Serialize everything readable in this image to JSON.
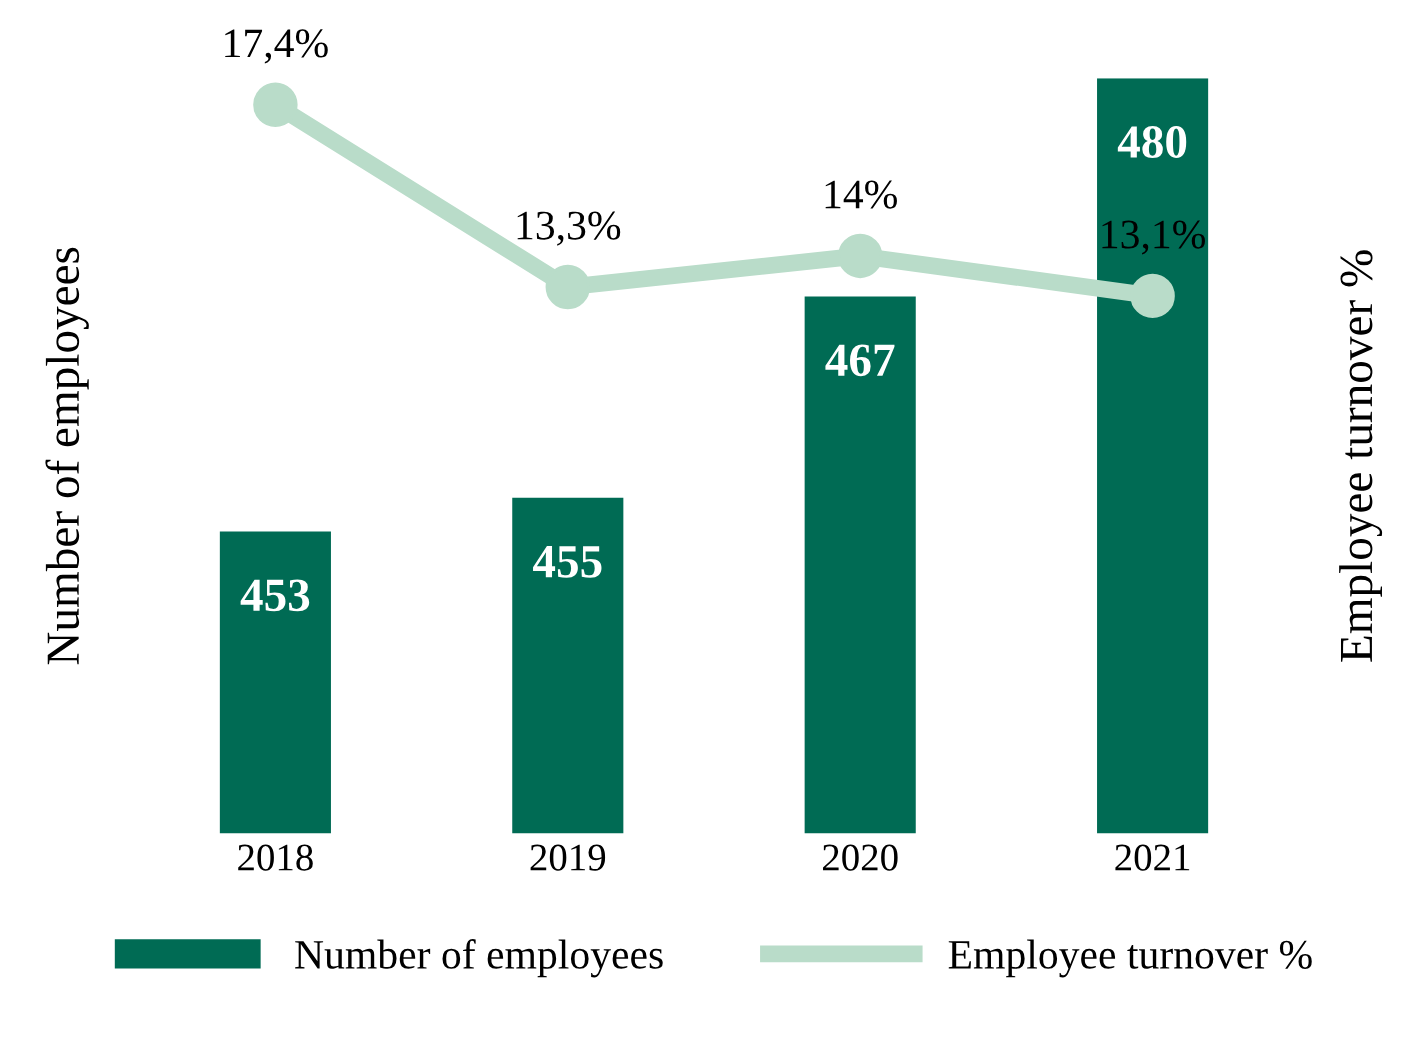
{
  "chart_data": {
    "type": "bar",
    "ylabel": "Number of employees",
    "y2label": "Employee turnover %",
    "categories": [
      "2018",
      "2019",
      "2020",
      "2021"
    ],
    "series": [
      {
        "name": "Number of employees",
        "color": "#006b54",
        "values": [
          453,
          455,
          467,
          480
        ],
        "value_labels": [
          "453",
          "455",
          "467",
          "480"
        ]
      },
      {
        "name": "Employee turnover %",
        "type": "line",
        "axis": "y2",
        "color": "#b9dcc9",
        "marker": "circle",
        "values": [
          17.4,
          13.3,
          14,
          13.1
        ],
        "value_labels": [
          "17,4%",
          "13,3%",
          "14%",
          "13,1%"
        ]
      }
    ],
    "ylim": [
      435,
      480
    ],
    "y2lim": [
      1,
      18
    ],
    "tick_labels": "x",
    "legend": "bottom",
    "grid": false
  }
}
